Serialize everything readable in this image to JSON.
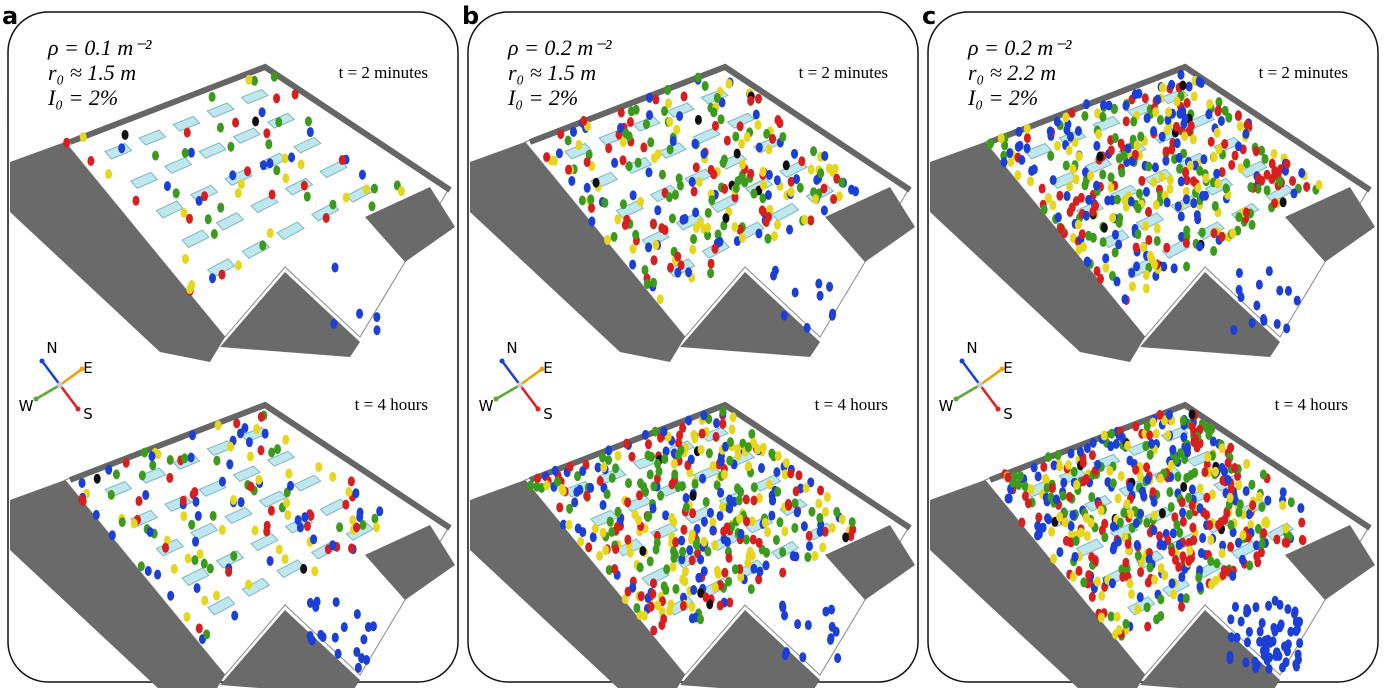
{
  "figure": {
    "panels": [
      {
        "label": "a",
        "rho": "ρ = 0.1 m⁻²",
        "r0": "r₀ ≈ 1.5 m",
        "i0": "I₀ = 2%",
        "top_time": "t = 2 minutes",
        "bottom_time": "t = 4 hours"
      },
      {
        "label": "b",
        "rho": "ρ = 0.2 m⁻²",
        "r0": "r₀ ≈ 1.5 m",
        "i0": "I₀ = 2%",
        "top_time": "t = 2 minutes",
        "bottom_time": "t = 4 hours"
      },
      {
        "label": "c",
        "rho": "ρ = 0.2 m⁻²",
        "r0": "r₀ ≈ 2.2 m",
        "i0": "I₀ = 2%",
        "top_time": "t = 2 minutes",
        "bottom_time": "t = 4 hours"
      }
    ],
    "compass": {
      "n": "N",
      "e": "E",
      "w": "W",
      "s": "S"
    }
  }
}
